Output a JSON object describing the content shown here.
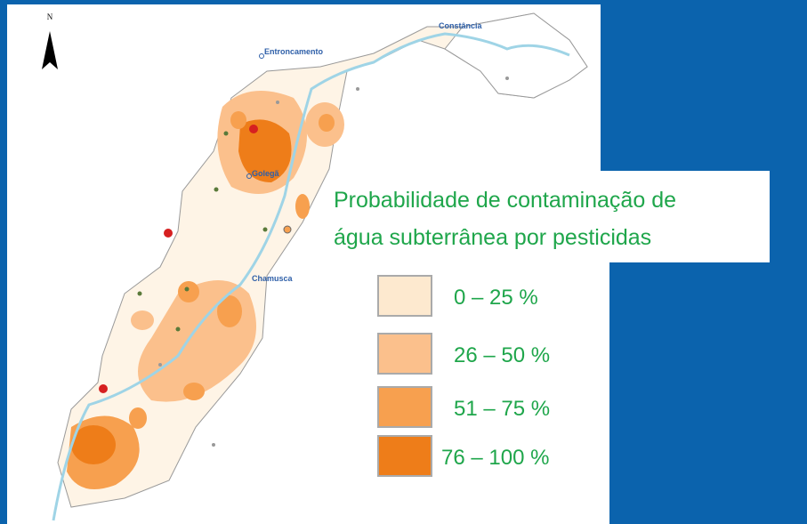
{
  "north": "N",
  "places": [
    "Entroncamento",
    "Constância",
    "Golegã",
    "Chamusca"
  ],
  "title": [
    "Probabilidade de contaminação de",
    "água subterrânea  por pesticidas"
  ],
  "legend": [
    {
      "label": "0 – 25 %",
      "color": "#fde9cf"
    },
    {
      "label": "26 – 50 %",
      "color": "#fbc08c"
    },
    {
      "label": "51 – 75 %",
      "color": "#f7a04f"
    },
    {
      "label": "76 – 100 %",
      "color": "#ee7d19"
    }
  ]
}
